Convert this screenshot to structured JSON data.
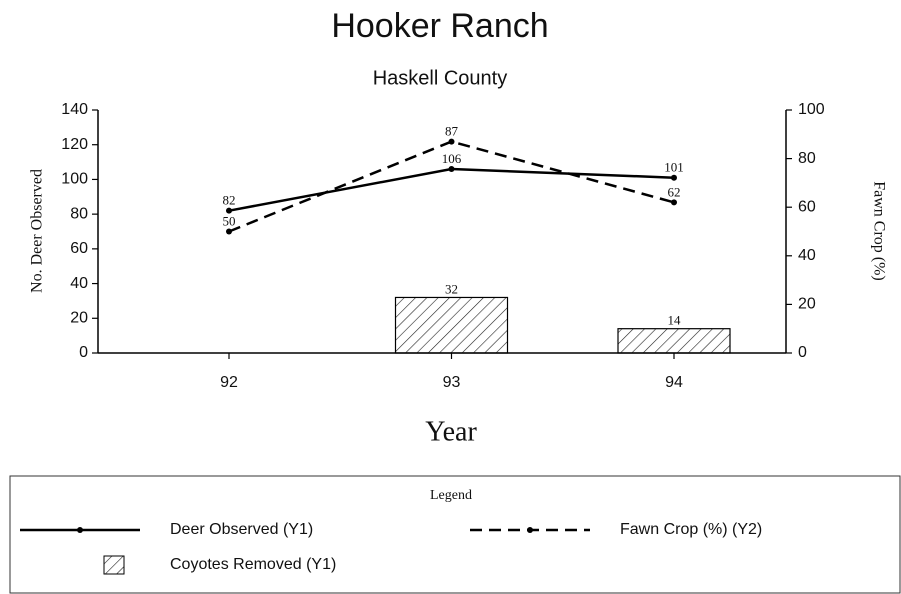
{
  "chart_data": {
    "type": "line",
    "title": "Hooker Ranch",
    "subtitle": "Haskell County",
    "xlabel": "Year",
    "ylabel": "No. Deer Observed",
    "y2label": "Fawn Crop (%)",
    "categories": [
      "92",
      "93",
      "94"
    ],
    "ylim": [
      0,
      140
    ],
    "yticks": [
      0,
      20,
      40,
      60,
      80,
      100,
      120,
      140
    ],
    "y2lim": [
      0,
      100
    ],
    "y2ticks": [
      0,
      20,
      40,
      60,
      80,
      100
    ],
    "legend_title": "Legend",
    "series": [
      {
        "name": "Deer Observed (Y1)",
        "type": "line",
        "color": "#000000",
        "dash": false,
        "axis": "y",
        "values": [
          82,
          106,
          101
        ]
      },
      {
        "name": "Fawn Crop (%) (Y2)",
        "type": "line",
        "color": "#000000",
        "dash": true,
        "axis": "y2",
        "values": [
          50,
          87,
          62
        ]
      },
      {
        "name": "Coyotes Removed (Y1)",
        "type": "bar",
        "color": "#000000",
        "axis": "y",
        "values": [
          null,
          32,
          14
        ]
      }
    ]
  }
}
